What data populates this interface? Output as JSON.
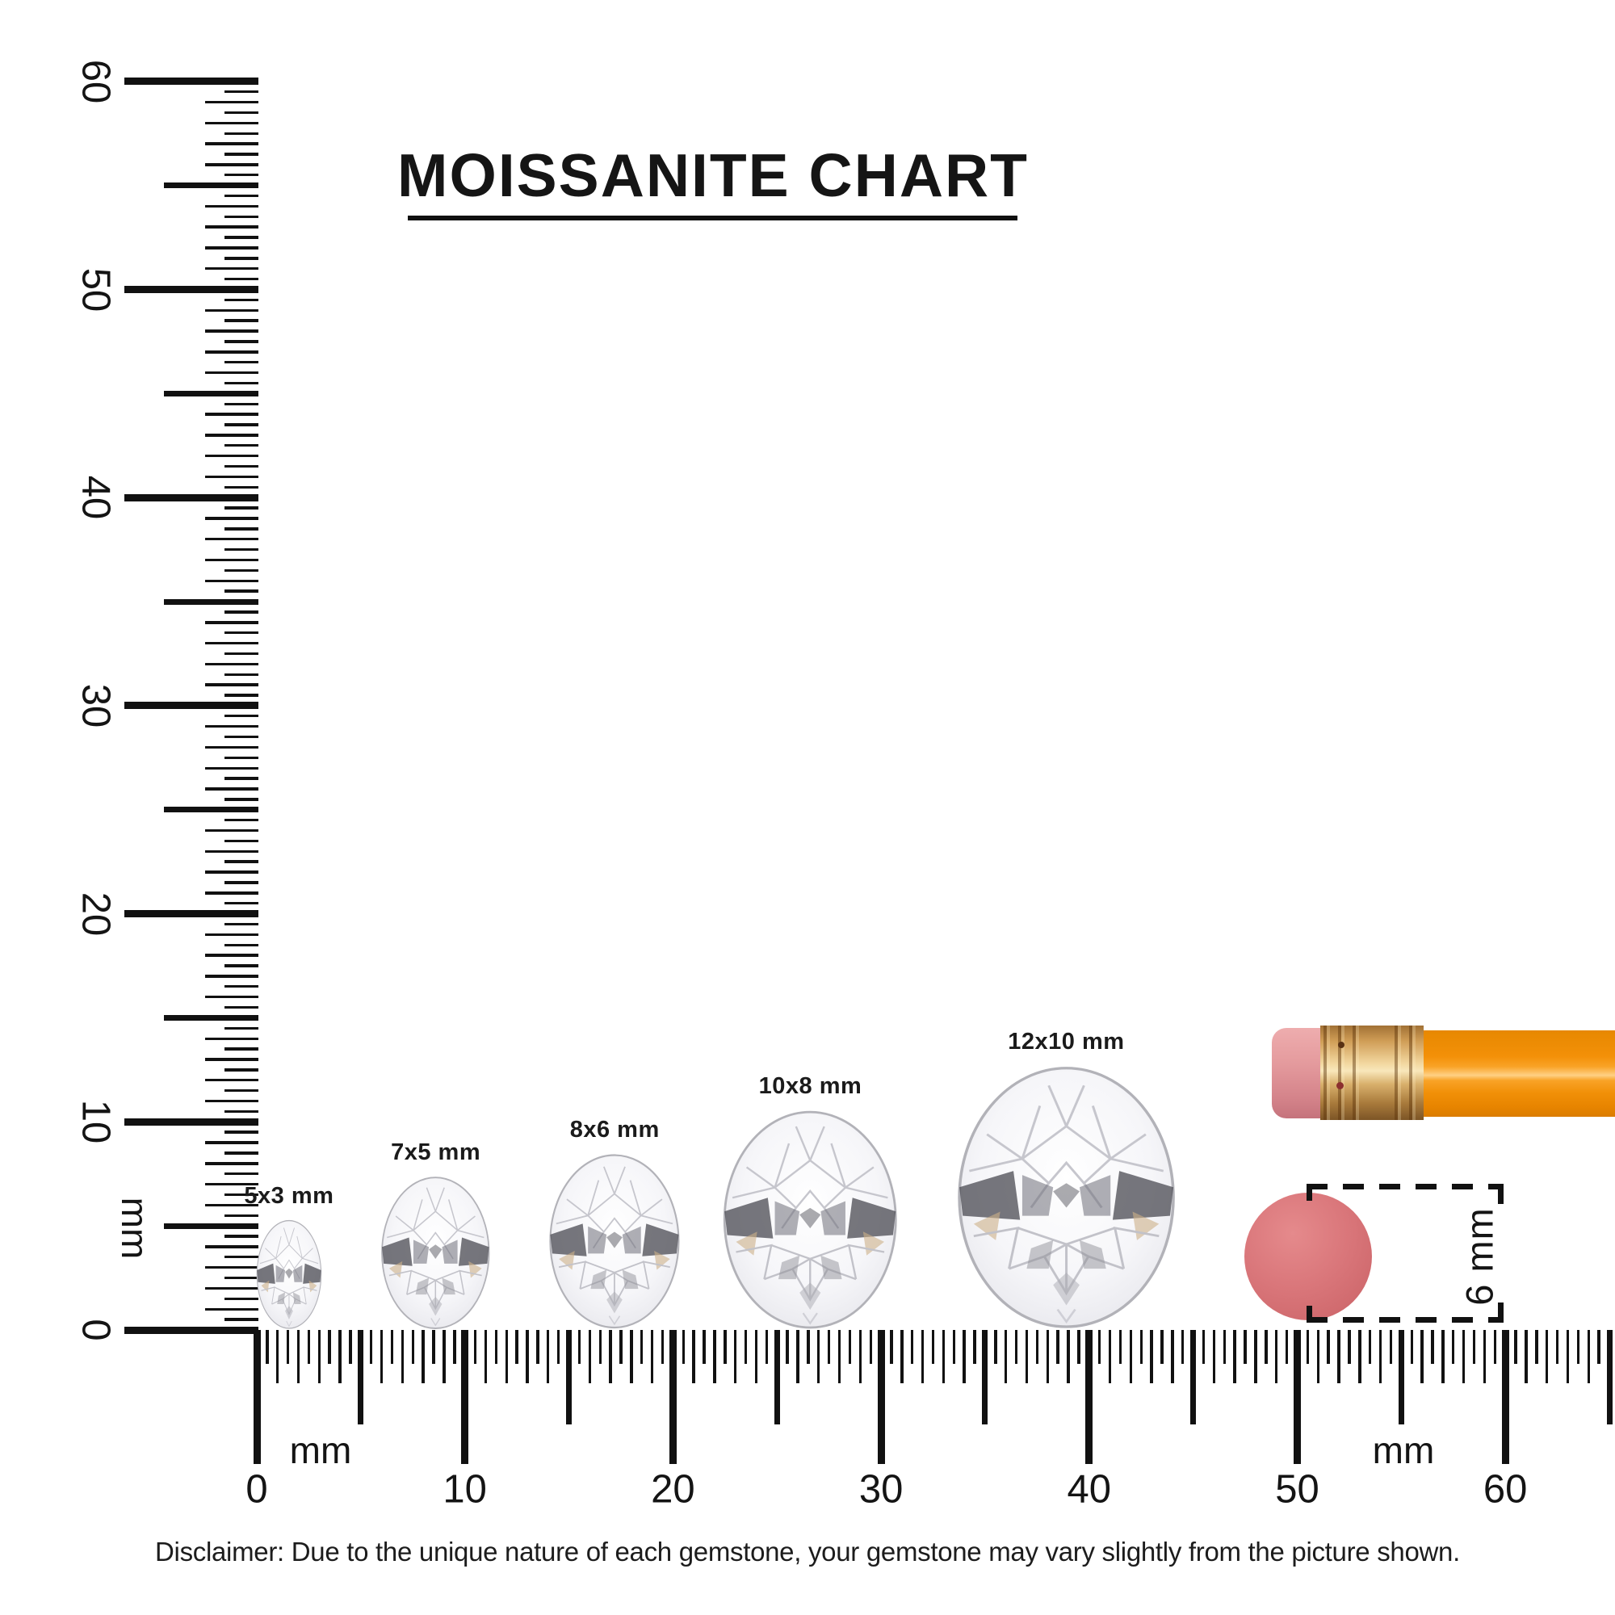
{
  "title": "MOISSANITE CHART",
  "rulers": {
    "vertical": {
      "unit_label": "mm",
      "tick_labels": [
        "60",
        "50",
        "40",
        "30",
        "20",
        "10",
        "0"
      ],
      "range_mm": [
        0,
        60
      ]
    },
    "horizontal": {
      "unit_label_left": "mm",
      "unit_label_right": "mm",
      "tick_labels": [
        "0",
        "10",
        "20",
        "30",
        "40",
        "50",
        "60"
      ],
      "range_mm": [
        0,
        65
      ]
    }
  },
  "stones": [
    {
      "label": "5x3 mm",
      "length_mm": 5,
      "width_mm": 3,
      "position_mm": 1.55
    },
    {
      "label": "7x5 mm",
      "length_mm": 7,
      "width_mm": 5,
      "position_mm": 8.6
    },
    {
      "label": "8x6 mm",
      "length_mm": 8,
      "width_mm": 6,
      "position_mm": 17.2
    },
    {
      "label": "10x8 mm",
      "length_mm": 10,
      "width_mm": 8,
      "position_mm": 26.6
    },
    {
      "label": "12x10 mm",
      "length_mm": 12,
      "width_mm": 10,
      "position_mm": 38.9
    }
  ],
  "eraser_comparison": {
    "diameter_label": "6 mm"
  },
  "disclaimer": "Disclaimer: Due to the unique nature of each gemstone, your gemstone may vary slightly from the picture shown.",
  "colors": {
    "ink": "#111111",
    "pencil_body_orange": "#f7930e",
    "pencil_ferrule_gold": "#d9a85f",
    "pencil_eraser_pink": "#e49a9d",
    "eraser_circle_pink": "#d76f72"
  }
}
